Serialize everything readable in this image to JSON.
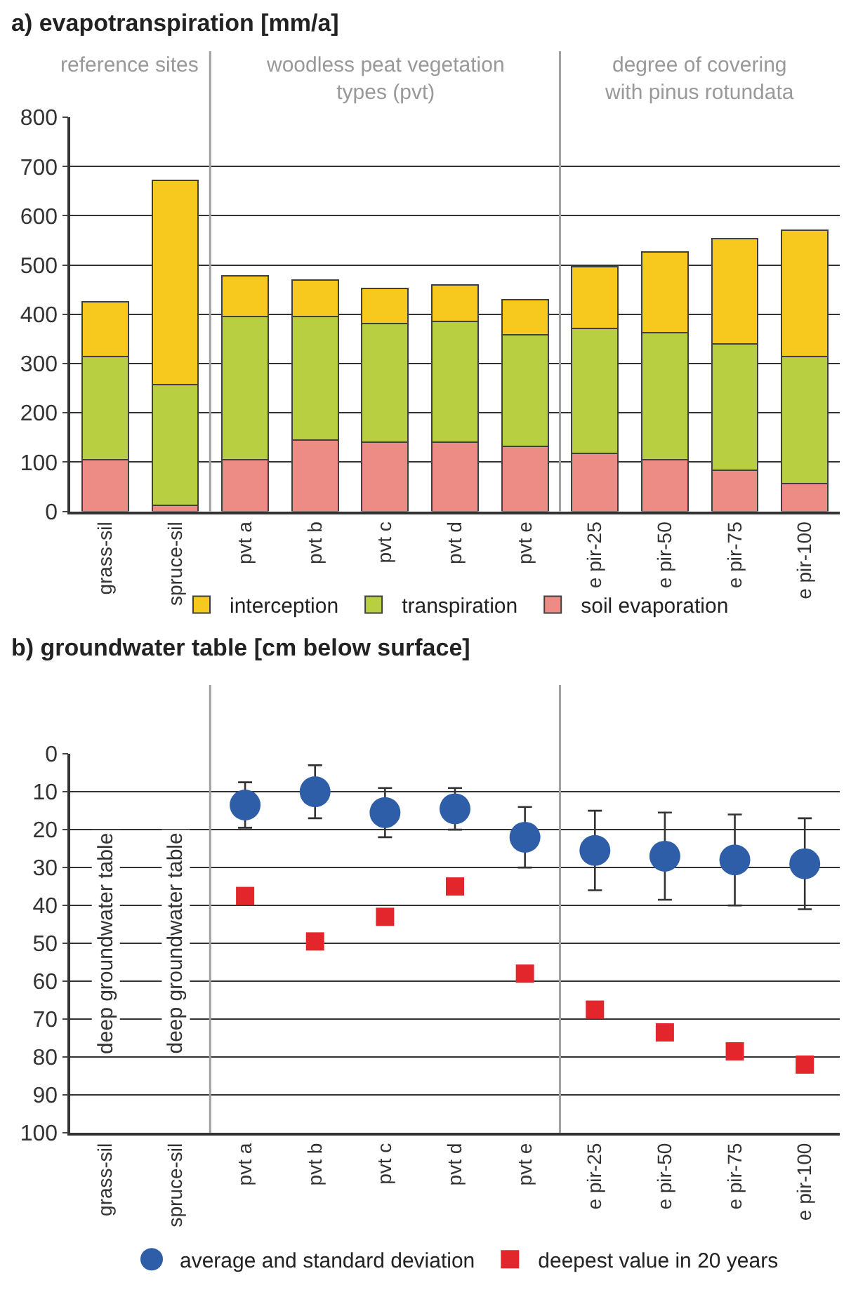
{
  "chart_data": [
    {
      "type": "bar",
      "title": "a) evapotranspiration [mm/a]",
      "stacked": true,
      "categories": [
        "grass-sil",
        "spruce-sil",
        "pvt a",
        "pvt b",
        "pvt c",
        "pvt d",
        "pvt e",
        "e pir-25",
        "e pir-50",
        "e pir-75",
        "e pir-100"
      ],
      "series": [
        {
          "name": "soil evaporation",
          "color": "#ec8c84",
          "values": [
            105,
            12,
            105,
            145,
            140,
            140,
            132,
            118,
            105,
            83,
            57
          ]
        },
        {
          "name": "transpiration",
          "color": "#b8cf41",
          "values": [
            210,
            245,
            290,
            250,
            241,
            245,
            227,
            254,
            258,
            257,
            258
          ]
        },
        {
          "name": "interception",
          "color": "#f7c81e",
          "values": [
            110,
            415,
            83,
            75,
            71,
            75,
            71,
            125,
            164,
            213,
            256
          ]
        }
      ],
      "ylim": [
        0,
        800
      ],
      "yticks": [
        0,
        100,
        200,
        300,
        400,
        500,
        600,
        700,
        800
      ],
      "grid": "y",
      "legend": "bottom",
      "annotations": [
        "reference sites",
        "woodless peat vegetation types (pvt)",
        "degree of covering with pinus rotundata"
      ]
    },
    {
      "type": "scatter",
      "title": "b) groundwater table [cm below surface]",
      "categories": [
        "grass-sil",
        "spruce-sil",
        "pvt a",
        "pvt b",
        "pvt c",
        "pvt d",
        "pvt e",
        "e pir-25",
        "e pir-50",
        "e pir-75",
        "e pir-100"
      ],
      "series": [
        {
          "name": "average and standard deviation",
          "color": "#2e5ea8",
          "marker": "circle",
          "values": [
            null,
            null,
            13.5,
            10,
            15.5,
            14.5,
            22,
            25.5,
            27,
            28,
            29
          ],
          "errors": [
            null,
            null,
            6,
            7,
            6.5,
            5.5,
            8,
            10.5,
            11.5,
            12,
            12
          ]
        },
        {
          "name": "deepest value in 20 years",
          "color": "#e3262b",
          "marker": "square",
          "values": [
            null,
            null,
            37.5,
            49.5,
            43,
            35,
            58,
            67.5,
            73.5,
            78.5,
            82
          ]
        }
      ],
      "ylim": [
        100,
        0
      ],
      "yticks": [
        0,
        10,
        20,
        30,
        40,
        50,
        60,
        70,
        80,
        90,
        100
      ],
      "grid": "y",
      "legend": "bottom",
      "annotations": [
        "deep groundwater table",
        "deep groundwater table"
      ]
    }
  ]
}
